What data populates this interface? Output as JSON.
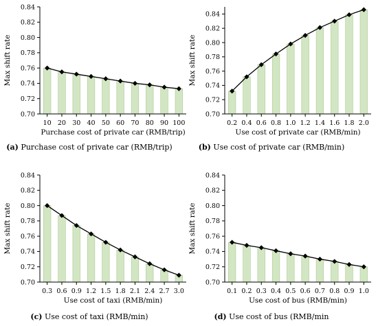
{
  "colors": {
    "bar_fill": "#d3e6c4",
    "bar_stroke": "#a9c98f",
    "line": "#000000",
    "axis": "#000000"
  },
  "chart_data": [
    {
      "type": "bar",
      "overlay": "line",
      "marker": "diamond",
      "caption_letter": "(a)",
      "caption_text": "Purchase cost of private car (RMB/trip)",
      "xlabel": "Purchase cost of private car (RMB/trip)",
      "ylabel": "Max shift rate",
      "categories": [
        "10",
        "20",
        "30",
        "40",
        "50",
        "60",
        "70",
        "80",
        "90",
        "100"
      ],
      "values": [
        0.76,
        0.755,
        0.752,
        0.749,
        0.746,
        0.743,
        0.74,
        0.738,
        0.735,
        0.733
      ],
      "ylim": [
        0.7,
        0.84
      ],
      "yticks": [
        "0.70",
        "0.72",
        "0.74",
        "0.76",
        "0.78",
        "0.80",
        "0.82",
        "0.84"
      ]
    },
    {
      "type": "bar",
      "overlay": "line",
      "marker": "diamond",
      "caption_letter": "(b)",
      "caption_text": "Use cost of private car (RMB/min)",
      "xlabel": "Use cost of private car (RMB/min)",
      "ylabel": "Max shift rate",
      "categories": [
        "0.2",
        "0.4",
        "0.6",
        "0.8",
        "1.0",
        "1.2",
        "1.4",
        "1.6",
        "1.8",
        "2.0"
      ],
      "values": [
        0.732,
        0.752,
        0.769,
        0.784,
        0.798,
        0.81,
        0.821,
        0.83,
        0.839,
        0.846
      ],
      "ylim": [
        0.7,
        0.85
      ],
      "yticks": [
        "0.70",
        "0.72",
        "0.74",
        "0.76",
        "0.78",
        "0.80",
        "0.82",
        "0.84"
      ]
    },
    {
      "type": "bar",
      "overlay": "line",
      "marker": "diamond",
      "caption_letter": "(c)",
      "caption_text": "Use cost of taxi (RMB/min)",
      "xlabel": "Use cost of taxi (RMB/min)",
      "ylabel": "Max shift rate",
      "categories": [
        "0.3",
        "0.6",
        "0.9",
        "1.2",
        "1.5",
        "1.8",
        "2.1",
        "2.4",
        "2.7",
        "3.0"
      ],
      "values": [
        0.8,
        0.787,
        0.774,
        0.763,
        0.752,
        0.742,
        0.733,
        0.724,
        0.716,
        0.709
      ],
      "ylim": [
        0.7,
        0.84
      ],
      "yticks": [
        "0.70",
        "0.72",
        "0.74",
        "0.76",
        "0.78",
        "0.80",
        "0.82",
        "0.84"
      ]
    },
    {
      "type": "bar",
      "overlay": "line",
      "marker": "diamond",
      "caption_letter": "(d)",
      "caption_text": "Use cost of bus (RMB/min",
      "xlabel": "Use cost of bus (RMB/min)",
      "ylabel": "Max shift rate",
      "categories": [
        "0.1",
        "0.2",
        "0.3",
        "0.4",
        "0.5",
        "0.6",
        "0.7",
        "0.8",
        "0.9",
        "1.0"
      ],
      "values": [
        0.752,
        0.748,
        0.745,
        0.741,
        0.737,
        0.734,
        0.73,
        0.727,
        0.723,
        0.72
      ],
      "ylim": [
        0.7,
        0.84
      ],
      "yticks": [
        "0.70",
        "0.72",
        "0.74",
        "0.76",
        "0.78",
        "0.80",
        "0.82",
        "0.84"
      ]
    }
  ]
}
